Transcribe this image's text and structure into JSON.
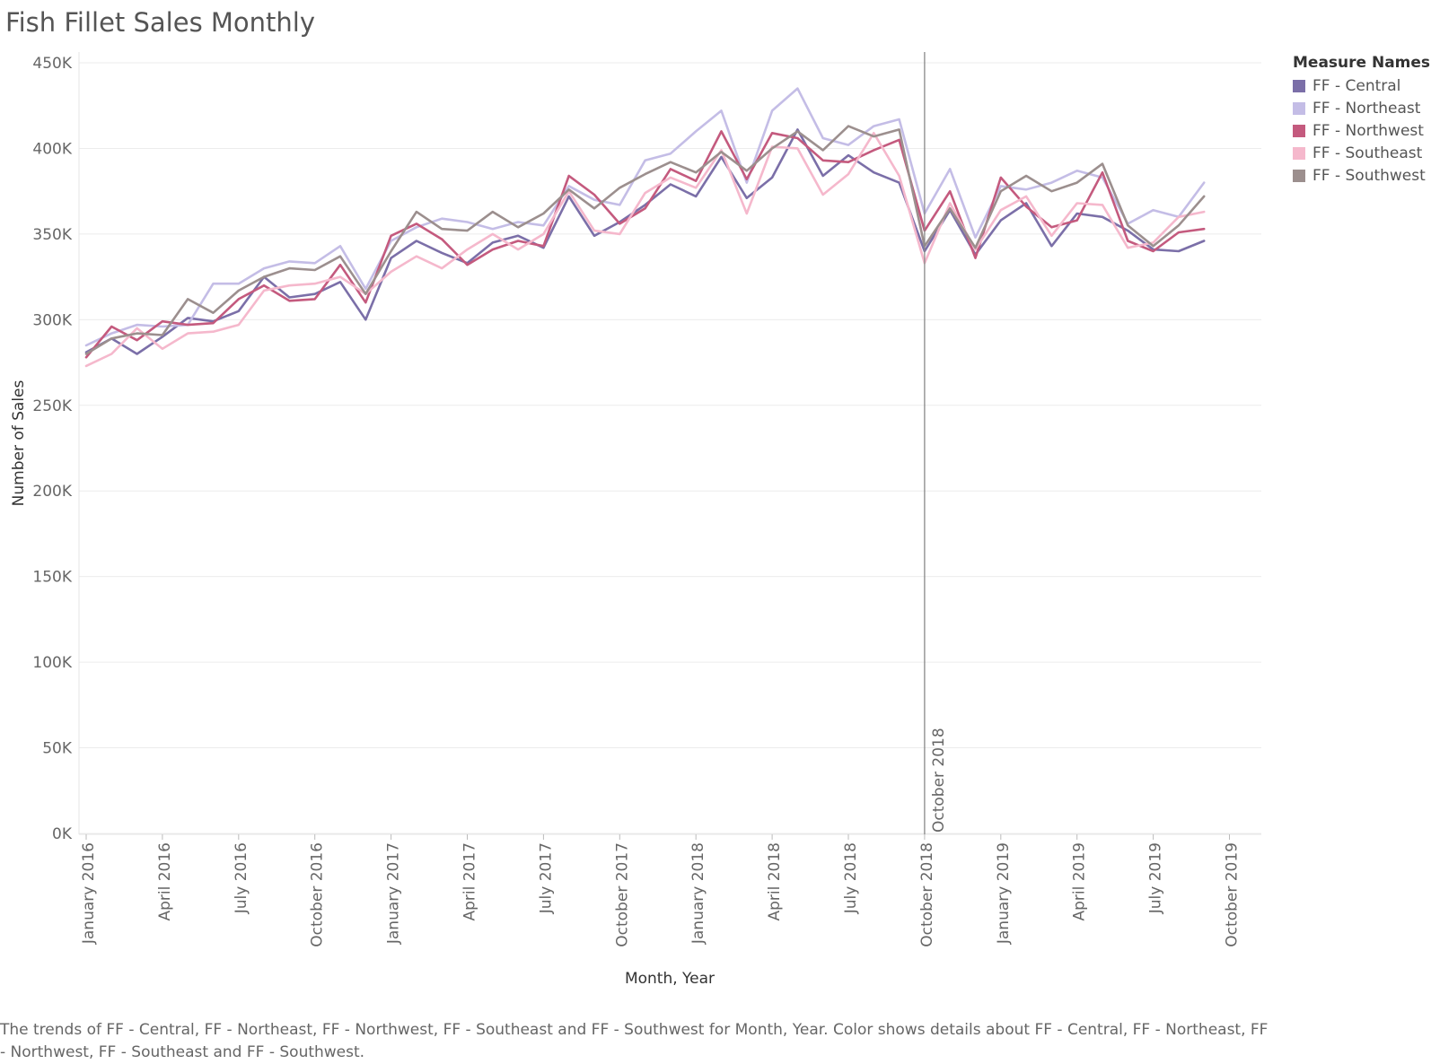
{
  "title": "Fish Fillet Sales Monthly",
  "caption": "The trends of FF  - Central, FF - Northeast, FF - Northwest, FF - Southeast and FF - Southwest for Month, Year.  Color shows details about FF  - Central, FF - Northeast, FF - Northwest, FF - Southeast and FF - Southwest.",
  "chart_data": {
    "type": "line",
    "title": "Fish Fillet Sales Monthly",
    "xlabel": "Month, Year",
    "ylabel": "Number of Sales",
    "ylim": [
      0,
      450000
    ],
    "yticks": [
      0,
      50000,
      100000,
      150000,
      200000,
      250000,
      300000,
      350000,
      400000,
      450000
    ],
    "ytick_labels": [
      "0K",
      "50K",
      "100K",
      "150K",
      "200K",
      "250K",
      "300K",
      "350K",
      "400K",
      "450K"
    ],
    "xticks": [
      "January 2016",
      "April 2016",
      "July 2016",
      "October 2016",
      "January 2017",
      "April 2017",
      "July 2017",
      "October 2017",
      "January 2018",
      "April 2018",
      "July 2018",
      "October 2018",
      "January 2019",
      "April 2019",
      "July 2019",
      "October 2019"
    ],
    "x_start": "January 2016",
    "x_end": "October 2019",
    "grid": true,
    "legend_title": "Measure Names",
    "legend_position": "right",
    "reference_line": {
      "x": "October 2018",
      "label": "October 2018",
      "color": "#888888"
    },
    "x": [
      "January 2016",
      "February 2016",
      "March 2016",
      "April 2016",
      "May 2016",
      "June 2016",
      "July 2016",
      "August 2016",
      "September 2016",
      "October 2016",
      "November 2016",
      "December 2016",
      "January 2017",
      "February 2017",
      "March 2017",
      "April 2017",
      "May 2017",
      "June 2017",
      "July 2017",
      "August 2017",
      "September 2017",
      "October 2017",
      "November 2017",
      "December 2017",
      "January 2018",
      "February 2018",
      "March 2018",
      "April 2018",
      "May 2018",
      "June 2018",
      "July 2018",
      "August 2018",
      "September 2018",
      "October 2018",
      "November 2018",
      "December 2018",
      "January 2019",
      "February 2019",
      "March 2019",
      "April 2019",
      "May 2019",
      "June 2019",
      "July 2019",
      "August 2019",
      "September 2019"
    ],
    "series": [
      {
        "name": "FF  - Central",
        "color": "#7b6fa8",
        "values": [
          281000,
          289000,
          280000,
          290000,
          301000,
          299000,
          305000,
          325000,
          313000,
          315000,
          322000,
          300000,
          336000,
          346000,
          339000,
          333000,
          345000,
          349000,
          342000,
          372000,
          349000,
          357000,
          367000,
          379000,
          372000,
          395000,
          371000,
          383000,
          411000,
          384000,
          396000,
          386000,
          380000,
          340000,
          364000,
          338000,
          358000,
          368000,
          343000,
          362000,
          360000,
          352000,
          341000,
          340000,
          346000
        ]
      },
      {
        "name": "FF - Northeast",
        "color": "#c4bde6",
        "values": [
          285000,
          292000,
          297000,
          296000,
          297000,
          321000,
          321000,
          330000,
          334000,
          333000,
          343000,
          318000,
          346000,
          354000,
          359000,
          357000,
          353000,
          357000,
          355000,
          378000,
          370000,
          367000,
          393000,
          397000,
          410000,
          422000,
          380000,
          422000,
          435000,
          406000,
          402000,
          413000,
          417000,
          362000,
          388000,
          348000,
          378000,
          376000,
          380000,
          387000,
          383000,
          356000,
          364000,
          360000,
          380000
        ]
      },
      {
        "name": "FF - Northwest",
        "color": "#c45a7e",
        "values": [
          278000,
          296000,
          288000,
          299000,
          297000,
          298000,
          312000,
          320000,
          311000,
          312000,
          332000,
          310000,
          349000,
          356000,
          347000,
          332000,
          341000,
          346000,
          343000,
          384000,
          373000,
          356000,
          365000,
          388000,
          381000,
          410000,
          382000,
          409000,
          406000,
          393000,
          392000,
          399000,
          405000,
          352000,
          375000,
          336000,
          383000,
          366000,
          354000,
          358000,
          386000,
          346000,
          340000,
          351000,
          353000
        ]
      },
      {
        "name": "FF - Southeast",
        "color": "#f5b8cc",
        "values": [
          273000,
          280000,
          295000,
          283000,
          292000,
          293000,
          297000,
          317000,
          320000,
          321000,
          325000,
          315000,
          328000,
          337000,
          330000,
          341000,
          350000,
          341000,
          350000,
          375000,
          352000,
          350000,
          374000,
          383000,
          377000,
          399000,
          362000,
          401000,
          400000,
          373000,
          385000,
          409000,
          384000,
          333000,
          368000,
          341000,
          364000,
          372000,
          349000,
          368000,
          367000,
          342000,
          345000,
          360000,
          363000
        ]
      },
      {
        "name": "FF - Southwest",
        "color": "#9c8f8e",
        "values": [
          280000,
          289000,
          292000,
          291000,
          312000,
          304000,
          317000,
          325000,
          330000,
          329000,
          337000,
          315000,
          340000,
          363000,
          353000,
          352000,
          363000,
          354000,
          362000,
          376000,
          365000,
          377000,
          385000,
          392000,
          386000,
          398000,
          387000,
          400000,
          410000,
          399000,
          413000,
          407000,
          411000,
          343000,
          365000,
          342000,
          375000,
          384000,
          375000,
          380000,
          391000,
          355000,
          343000,
          355000,
          372000
        ]
      }
    ]
  }
}
